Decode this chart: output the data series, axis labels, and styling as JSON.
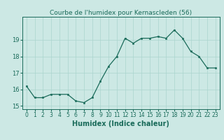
{
  "x": [
    0,
    1,
    2,
    3,
    4,
    5,
    6,
    7,
    8,
    9,
    10,
    11,
    12,
    13,
    14,
    15,
    16,
    17,
    18,
    19,
    20,
    21,
    22,
    23
  ],
  "y": [
    16.2,
    15.5,
    15.5,
    15.7,
    15.7,
    15.7,
    15.3,
    15.2,
    15.5,
    16.5,
    17.4,
    18.0,
    19.1,
    18.8,
    19.1,
    19.1,
    19.2,
    19.1,
    19.6,
    19.1,
    18.3,
    18.0,
    17.3,
    17.3
  ],
  "title": "Courbe de l'humidex pour Kernascleden (56)",
  "xlabel": "Humidex (Indice chaleur)",
  "ylim": [
    14.8,
    20.4
  ],
  "yticks": [
    15,
    16,
    17,
    18,
    19
  ],
  "bg_color": "#cce8e4",
  "grid_color": "#aad4ce",
  "line_color": "#1a6b5a",
  "title_fontsize": 6.5,
  "axis_fontsize": 5.5,
  "label_fontsize": 7.0
}
